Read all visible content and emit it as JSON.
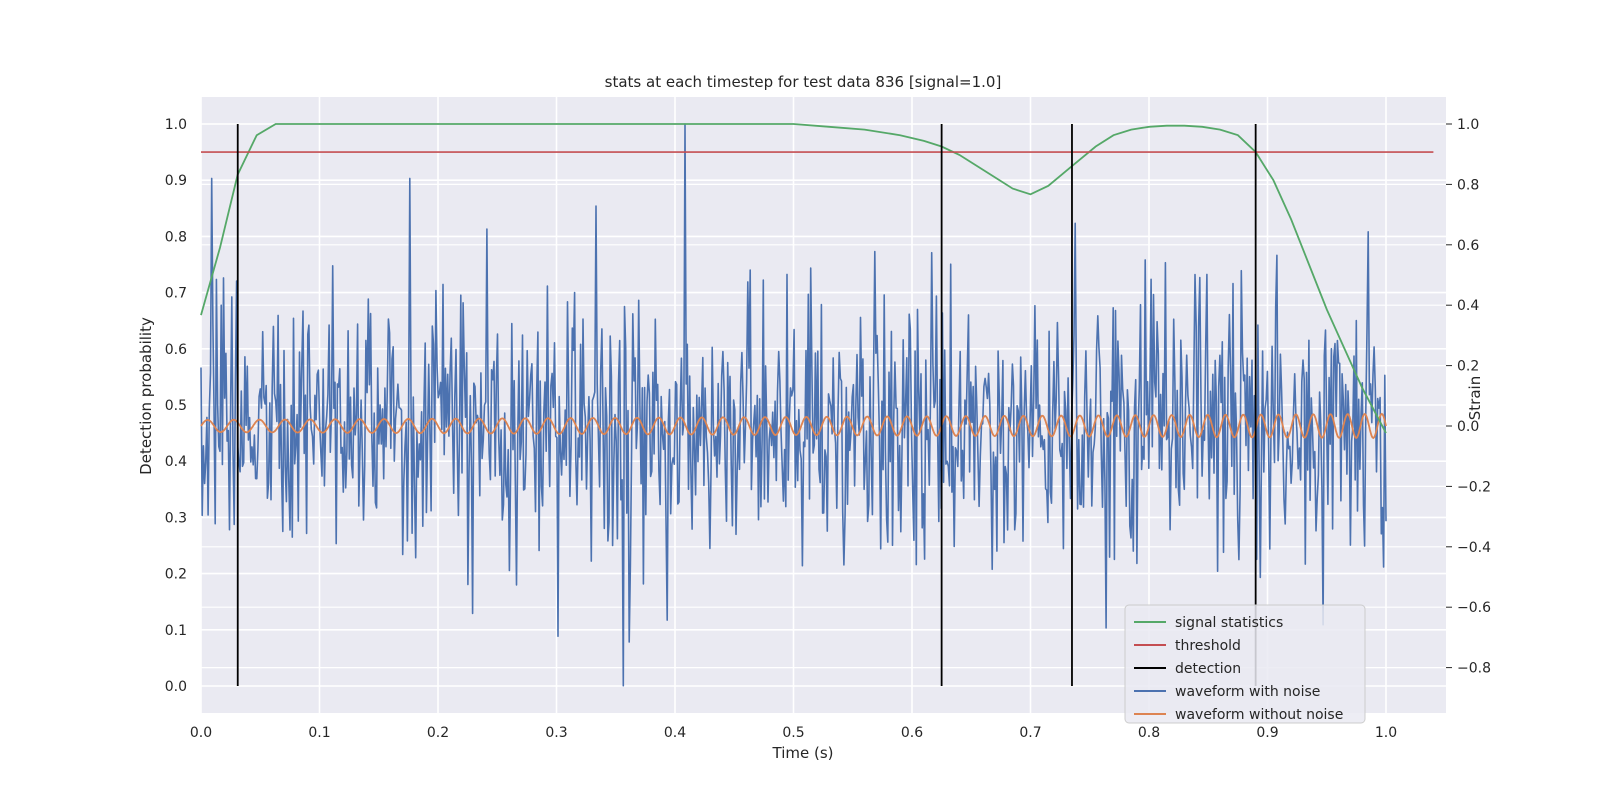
{
  "chart_data": {
    "type": "line",
    "title": "stats at each timestep for test data 836 [signal=1.0]",
    "xlabel": "Time (s)",
    "ylabel_left": "Detection probability",
    "ylabel_right": "Strain",
    "xlim": [
      0.0,
      1.05
    ],
    "ylim_left": [
      -0.045,
      1.045
    ],
    "ylim_right": [
      -0.95,
      1.1
    ],
    "xticks": [
      "0.0",
      "0.1",
      "0.2",
      "0.3",
      "0.4",
      "0.5",
      "0.6",
      "0.7",
      "0.8",
      "0.9",
      "1.0"
    ],
    "yticks_left": [
      "0.0",
      "0.1",
      "0.2",
      "0.3",
      "0.4",
      "0.5",
      "0.6",
      "0.7",
      "0.8",
      "0.9",
      "1.0"
    ],
    "yticks_right": [
      "−0.8",
      "−0.6",
      "−0.4",
      "−0.2",
      "0.0",
      "0.2",
      "0.4",
      "0.6",
      "0.8",
      "1.0"
    ],
    "grid": true,
    "legend_position": "lower-right",
    "legend": [
      "signal statistics",
      "threshold",
      "detection",
      "waveform with noise",
      "waveform without noise"
    ],
    "colors": {
      "signal_statistics": "#55a868",
      "threshold": "#c44e52",
      "detection": "#000000",
      "waveform_noise": "#4c72b0",
      "waveform_clean": "#dd8452",
      "plot_bg": "#eaeaf2",
      "grid": "#ffffff"
    },
    "series": [
      {
        "name": "signal statistics",
        "axis": "left",
        "x": [
          0.0,
          0.016,
          0.031,
          0.047,
          0.063,
          0.08,
          0.1,
          0.2,
          0.3,
          0.4,
          0.5,
          0.53,
          0.56,
          0.59,
          0.61,
          0.625,
          0.64,
          0.655,
          0.67,
          0.685,
          0.7,
          0.715,
          0.735,
          0.755,
          0.77,
          0.785,
          0.8,
          0.815,
          0.83,
          0.845,
          0.86,
          0.875,
          0.89,
          0.905,
          0.92,
          0.935,
          0.95,
          0.965,
          0.98,
          1.0
        ],
        "y": [
          0.66,
          0.78,
          0.91,
          0.98,
          1.0,
          1.0,
          1.0,
          1.0,
          1.0,
          1.0,
          1.0,
          0.995,
          0.99,
          0.98,
          0.97,
          0.96,
          0.945,
          0.925,
          0.905,
          0.885,
          0.875,
          0.89,
          0.925,
          0.96,
          0.98,
          0.99,
          0.995,
          0.997,
          0.997,
          0.995,
          0.99,
          0.98,
          0.95,
          0.9,
          0.83,
          0.75,
          0.67,
          0.6,
          0.53,
          0.45
        ]
      },
      {
        "name": "threshold",
        "axis": "left",
        "x": [
          0.0,
          1.04
        ],
        "y": [
          0.95,
          0.95
        ]
      },
      {
        "name": "detection",
        "axis": "left",
        "x": [
          0.031,
          0.625,
          0.735,
          0.89
        ],
        "y_range": [
          0.0,
          1.0
        ]
      },
      {
        "name": "waveform with noise",
        "axis": "right",
        "x_range": [
          0.0,
          1.0
        ],
        "n_points": 1000,
        "std": 0.23,
        "peak": {
          "x": 0.408,
          "y": 1.0
        },
        "trough": {
          "x": 0.356,
          "y": -0.86
        }
      },
      {
        "name": "waveform without noise",
        "axis": "right",
        "x_range": [
          0.0,
          1.0
        ],
        "amplitude_start": 0.02,
        "amplitude_end": 0.04,
        "freq_start_hz": 45,
        "freq_end_hz": 70
      }
    ]
  }
}
